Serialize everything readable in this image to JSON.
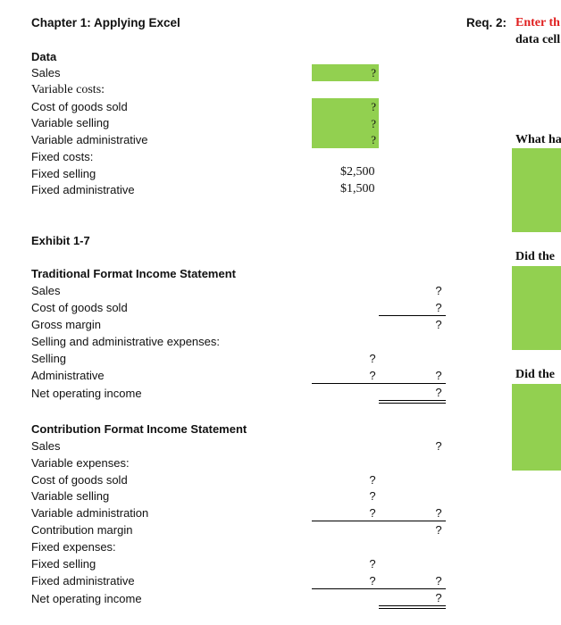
{
  "header": {
    "chapter_title": "Chapter 1: Applying Excel",
    "req_label": "Req. 2:",
    "req_instruction": "Enter th",
    "req_instruction_2": "data cell"
  },
  "data_section": {
    "heading": "Data",
    "rows": [
      {
        "label": "Sales",
        "value": "?"
      },
      {
        "label": "Variable costs:",
        "value": ""
      },
      {
        "label": "Cost of goods sold",
        "value": "?"
      },
      {
        "label": "Variable selling",
        "value": "?"
      },
      {
        "label": "Variable administrative",
        "value": "?"
      },
      {
        "label": "Fixed costs:",
        "value": ""
      },
      {
        "label": "Fixed selling",
        "value": "$2,500"
      },
      {
        "label": "Fixed administrative",
        "value": "$1,500"
      }
    ]
  },
  "exhibit": {
    "title": "Exhibit 1-7"
  },
  "traditional": {
    "heading": "Traditional Format Income Statement",
    "rows": [
      {
        "label": "Sales",
        "col1": "",
        "col2": "?"
      },
      {
        "label": "Cost of goods sold",
        "col1": "",
        "col2": "?"
      },
      {
        "label": "Gross margin",
        "col1": "",
        "col2": "?"
      },
      {
        "label": "Selling and administrative expenses:",
        "col1": "",
        "col2": ""
      },
      {
        "label": "Selling",
        "col1": "?",
        "col2": ""
      },
      {
        "label": "Administrative",
        "col1": "?",
        "col2": "?"
      },
      {
        "label": "Net operating income",
        "col1": "",
        "col2": "?"
      }
    ]
  },
  "contribution": {
    "heading": "Contribution Format Income Statement",
    "rows": [
      {
        "label": "Sales",
        "col1": "",
        "col2": "?"
      },
      {
        "label": "Variable expenses:",
        "col1": "",
        "col2": ""
      },
      {
        "label": "Cost of goods sold",
        "col1": "?",
        "col2": ""
      },
      {
        "label": "Variable selling",
        "col1": "?",
        "col2": ""
      },
      {
        "label": "Variable administration",
        "col1": "?",
        "col2": "?"
      },
      {
        "label": "Contribution margin",
        "col1": "",
        "col2": "?"
      },
      {
        "label": "Fixed expenses:",
        "col1": "",
        "col2": ""
      },
      {
        "label": "Fixed selling",
        "col1": "?",
        "col2": ""
      },
      {
        "label": "Fixed administrative",
        "col1": "?",
        "col2": "?"
      },
      {
        "label": "Net operating income",
        "col1": "",
        "col2": "?"
      }
    ]
  },
  "questions": {
    "q1": "What ha",
    "q2": "Did the",
    "q3": "Did the"
  },
  "colors": {
    "accent_green": "#92d050",
    "instruction_red": "#e02020"
  }
}
